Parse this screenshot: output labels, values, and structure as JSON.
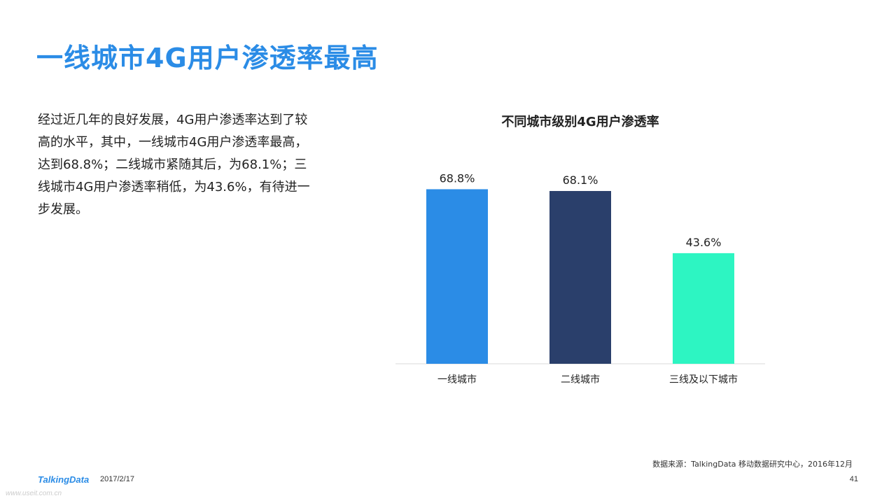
{
  "slide": {
    "title": "一线城市4G用户渗透率最高",
    "summary": "经过近几年的良好发展，4G用户渗透率达到了较高的水平，其中，一线城市4G用户渗透率最高，达到68.8%；二线城市紧随其后，为68.1%；三线城市4G用户渗透率稍低，为43.6%，有待进一步发展。"
  },
  "chart_data": {
    "type": "bar",
    "title": "不同城市级别4G用户渗透率",
    "categories": [
      "一线城市",
      "二线城市",
      "三线及以下城市"
    ],
    "values": [
      68.8,
      68.1,
      43.6
    ],
    "value_labels": [
      "68.8%",
      "68.1%",
      "43.6%"
    ],
    "colors": [
      "#2b8ce6",
      "#2a3f6b",
      "#2df5c2"
    ],
    "xlabel": "",
    "ylabel": "",
    "ylim": [
      0,
      75
    ],
    "grid": false,
    "legend": "none"
  },
  "footer": {
    "source": "数据来源：TalkingData 移动数据研究中心，2016年12月",
    "logo_text": "TalkingData",
    "date": "2017/2/17",
    "page_number": "41",
    "watermark": "www.useit.com.cn"
  }
}
